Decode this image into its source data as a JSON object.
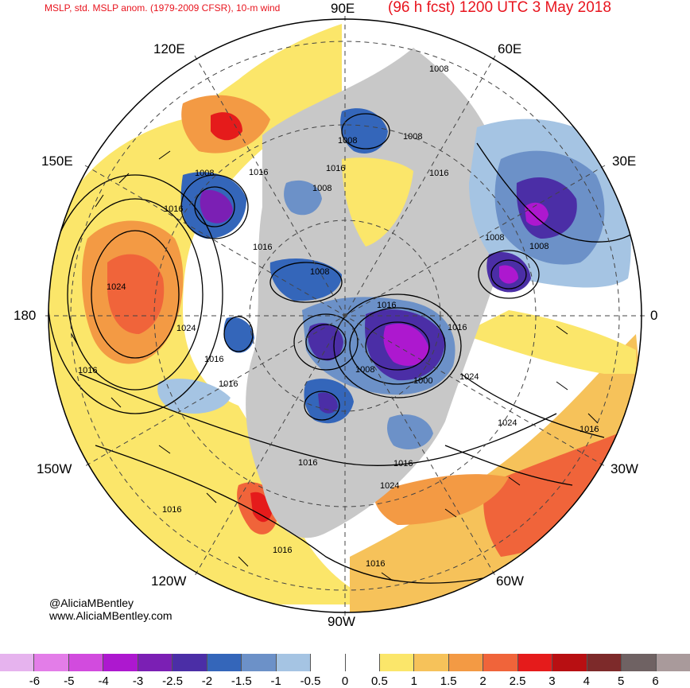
{
  "header": {
    "left_title": "MSLP, std. MSLP anom. (1979-2009 CFSR), 10-m wind",
    "right_title": "(96 h fcst) 1200 UTC 3 May 2018"
  },
  "longitude_labels": {
    "e90": "90E",
    "e60": "60E",
    "e30": "30E",
    "zero": "0",
    "w30": "30W",
    "w60": "60W",
    "w90": "90W",
    "w120": "120W",
    "w150": "150W",
    "l180": "180",
    "e150": "150E",
    "e120": "120E"
  },
  "isobar_labels": [
    "1008",
    "1008",
    "1008",
    "1016",
    "1016",
    "1008",
    "1016",
    "1008",
    "1008",
    "1016",
    "1016",
    "1016",
    "1008",
    "1008",
    "1024",
    "1024",
    "1016",
    "1016",
    "1008",
    "1016",
    "1000",
    "1024",
    "1024",
    "1016",
    "1016",
    "1016",
    "1016",
    "1024",
    "1016",
    "1016",
    "1016"
  ],
  "credits": {
    "handle": "@AliciaMBentley",
    "website": "www.AliciaMBentley.com"
  },
  "colorbar": {
    "colors": [
      "#e6b3ee",
      "#e37de8",
      "#d24bde",
      "#ad18cf",
      "#7b1fb4",
      "#4b2ea6",
      "#3466ba",
      "#6c91c8",
      "#a5c4e3",
      "#ffffff",
      "#ffffff",
      "#fbe66a",
      "#f6c25a",
      "#f39a44",
      "#f0643a",
      "#e51b1b",
      "#b80f12",
      "#7d2a2a",
      "#6f6263",
      "#a99a9b"
    ],
    "ticks": [
      "-6",
      "-5",
      "-4",
      "-3",
      "-2.5",
      "-2",
      "-1.5",
      "-1",
      "-0.5",
      "0",
      "0.5",
      "1",
      "1.5",
      "2",
      "2.5",
      "3",
      "4",
      "5",
      "6"
    ]
  }
}
